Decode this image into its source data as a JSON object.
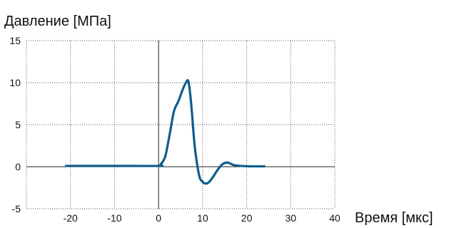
{
  "chart_data": {
    "type": "line",
    "ylabel": "Давление [МПа]",
    "xlabel": "Время [мкс]",
    "xlim": [
      -30,
      40
    ],
    "ylim": [
      -5,
      15
    ],
    "xticks": [
      "-20",
      "-10",
      "0",
      "10",
      "20",
      "30",
      "40"
    ],
    "yticks": [
      "15",
      "10",
      "5",
      "0",
      "-5"
    ],
    "grid": true,
    "line_color": "#0f5c8c",
    "series": [
      {
        "x": [
          -21,
          -10,
          0,
          0.5,
          1.5,
          2.5,
          3.5,
          4.5,
          5.5,
          6.2,
          6.8,
          7.4,
          8.2,
          9.2,
          10.0,
          10.7,
          11.5,
          12.5,
          13.5,
          14.5,
          15.5,
          16.2,
          17.0,
          18.5,
          20.5,
          24.0
        ],
        "y": [
          0.1,
          0.1,
          0.1,
          0.3,
          1.2,
          3.8,
          6.6,
          7.8,
          9.2,
          10.0,
          10.1,
          7.5,
          2.5,
          -1.0,
          -1.8,
          -2.0,
          -1.8,
          -1.1,
          -0.3,
          0.3,
          0.5,
          0.4,
          0.2,
          0.1,
          0.05,
          0.05
        ]
      }
    ]
  }
}
